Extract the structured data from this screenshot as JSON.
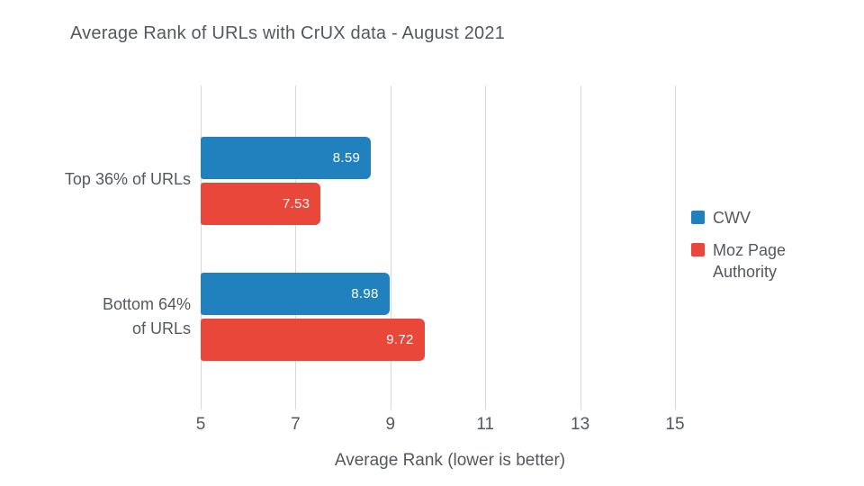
{
  "chart_data": {
    "type": "bar",
    "orientation": "horizontal",
    "title": "Average Rank of URLs with CrUX data - August 2021",
    "categories": [
      "Top 36% of URLs",
      "Bottom 64% of URLs"
    ],
    "category_display_lines": [
      [
        "Top 36% of URLs"
      ],
      [
        "Bottom 64%",
        "of URLs"
      ]
    ],
    "series": [
      {
        "name": "CWV",
        "color": "#2181be",
        "values": [
          8.59,
          8.98
        ],
        "labels": [
          "8.59",
          "8.98"
        ]
      },
      {
        "name": "Moz Page Authority",
        "color": "#e8473a",
        "values": [
          7.53,
          9.72
        ],
        "labels": [
          "7.53",
          "9.72"
        ]
      }
    ],
    "xlabel": "Average Rank (lower is better)",
    "x_ticks": [
      "5",
      "7",
      "9",
      "11",
      "13",
      "15"
    ],
    "x_tick_values": [
      5,
      7,
      9,
      11,
      13,
      15
    ],
    "xlim": [
      5,
      15
    ],
    "grid": true,
    "legend_position": "right",
    "colors": {
      "cwv_blue": "#2181be",
      "moz_red": "#e8473a",
      "text_gray": "#54585d",
      "gridline_gray": "#d8d8d8",
      "value_label_white": "#ffffff",
      "background": "#ffffff"
    }
  }
}
